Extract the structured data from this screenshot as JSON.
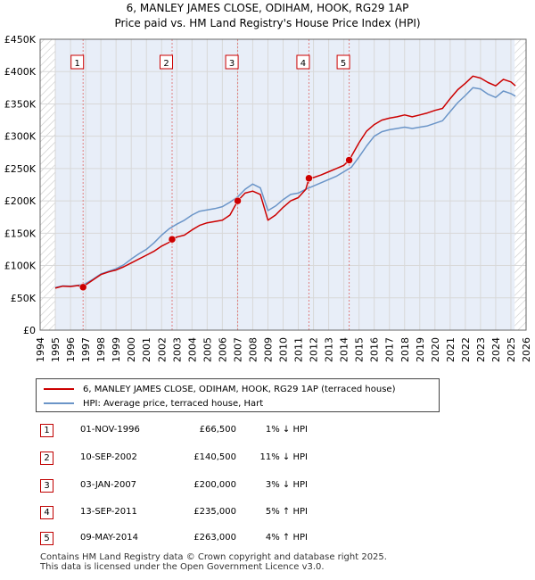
{
  "title_line1": "6, MANLEY JAMES CLOSE, ODIHAM, HOOK, RG29 1AP",
  "title_line2": "Price paid vs. HM Land Registry's House Price Index (HPI)",
  "colors": {
    "property": "#cc0000",
    "hpi": "#6b95c8",
    "shade": "#e8eef8",
    "grid": "#d8d8d8",
    "marker_dash": "#e08080"
  },
  "chart_data": {
    "type": "line",
    "title": "6, MANLEY JAMES CLOSE, ODIHAM, HOOK, RG29 1AP",
    "subtitle": "Price paid vs. HM Land Registry's House Price Index (HPI)",
    "xlabel": "",
    "ylabel": "",
    "xlim": [
      1994,
      2026
    ],
    "ylim": [
      0,
      450000
    ],
    "y_ticks": [
      0,
      50000,
      100000,
      150000,
      200000,
      250000,
      300000,
      350000,
      400000,
      450000
    ],
    "y_tick_labels": [
      "£0",
      "£50K",
      "£100K",
      "£150K",
      "£200K",
      "£250K",
      "£300K",
      "£350K",
      "£400K",
      "£450K"
    ],
    "x_ticks": [
      1994,
      1995,
      1996,
      1997,
      1998,
      1999,
      2000,
      2001,
      2002,
      2003,
      2004,
      2005,
      2006,
      2007,
      2008,
      2009,
      2010,
      2011,
      2012,
      2013,
      2014,
      2015,
      2016,
      2017,
      2018,
      2019,
      2020,
      2021,
      2022,
      2023,
      2024,
      2025,
      2026
    ],
    "shaded_regions": [
      [
        1995.0,
        2025.25
      ]
    ],
    "hatched_regions": [
      [
        1994.0,
        1995.0
      ],
      [
        2025.25,
        2026.0
      ]
    ],
    "grid": true,
    "series": [
      {
        "name": "6, MANLEY JAMES CLOSE, ODIHAM, HOOK, RG29 1AP (terraced house)",
        "color": "#cc0000",
        "points": [
          [
            1995.0,
            65000
          ],
          [
            1995.5,
            68000
          ],
          [
            1996.0,
            67500
          ],
          [
            1996.5,
            69000
          ],
          [
            1996.83,
            66500
          ],
          [
            1997.0,
            70000
          ],
          [
            1997.5,
            78000
          ],
          [
            1998.0,
            86000
          ],
          [
            1998.5,
            90000
          ],
          [
            1999.0,
            93000
          ],
          [
            1999.5,
            98000
          ],
          [
            2000.0,
            104000
          ],
          [
            2000.5,
            110000
          ],
          [
            2001.0,
            116000
          ],
          [
            2001.5,
            122000
          ],
          [
            2002.0,
            130000
          ],
          [
            2002.5,
            136000
          ],
          [
            2002.69,
            140500
          ],
          [
            2003.0,
            144000
          ],
          [
            2003.5,
            147000
          ],
          [
            2004.0,
            155000
          ],
          [
            2004.5,
            162000
          ],
          [
            2005.0,
            166000
          ],
          [
            2005.5,
            168000
          ],
          [
            2006.0,
            170000
          ],
          [
            2006.5,
            178000
          ],
          [
            2007.01,
            200000
          ],
          [
            2007.5,
            212000
          ],
          [
            2008.0,
            215000
          ],
          [
            2008.5,
            210000
          ],
          [
            2009.0,
            170000
          ],
          [
            2009.5,
            178000
          ],
          [
            2010.0,
            190000
          ],
          [
            2010.5,
            200000
          ],
          [
            2011.0,
            205000
          ],
          [
            2011.5,
            218000
          ],
          [
            2011.7,
            235000
          ],
          [
            2012.0,
            236000
          ],
          [
            2012.5,
            240000
          ],
          [
            2013.0,
            245000
          ],
          [
            2013.5,
            250000
          ],
          [
            2014.0,
            255000
          ],
          [
            2014.35,
            263000
          ],
          [
            2015.0,
            290000
          ],
          [
            2015.5,
            308000
          ],
          [
            2016.0,
            318000
          ],
          [
            2016.5,
            325000
          ],
          [
            2017.0,
            328000
          ],
          [
            2017.5,
            330000
          ],
          [
            2018.0,
            333000
          ],
          [
            2018.5,
            330000
          ],
          [
            2019.0,
            333000
          ],
          [
            2019.5,
            336000
          ],
          [
            2020.0,
            340000
          ],
          [
            2020.5,
            343000
          ],
          [
            2021.0,
            358000
          ],
          [
            2021.5,
            372000
          ],
          [
            2022.0,
            382000
          ],
          [
            2022.5,
            393000
          ],
          [
            2023.0,
            390000
          ],
          [
            2023.5,
            383000
          ],
          [
            2024.0,
            378000
          ],
          [
            2024.5,
            388000
          ],
          [
            2025.0,
            384000
          ],
          [
            2025.3,
            378000
          ]
        ]
      },
      {
        "name": "HPI: Average price, terraced house, Hart",
        "color": "#6b95c8",
        "points": [
          [
            1995.0,
            66000
          ],
          [
            1995.5,
            68500
          ],
          [
            1996.0,
            68000
          ],
          [
            1996.5,
            69500
          ],
          [
            1997.0,
            72000
          ],
          [
            1997.5,
            79000
          ],
          [
            1998.0,
            87000
          ],
          [
            1998.5,
            91000
          ],
          [
            1999.0,
            95000
          ],
          [
            1999.5,
            101000
          ],
          [
            2000.0,
            110000
          ],
          [
            2000.5,
            118000
          ],
          [
            2001.0,
            125000
          ],
          [
            2001.5,
            135000
          ],
          [
            2002.0,
            147000
          ],
          [
            2002.5,
            157000
          ],
          [
            2003.0,
            164000
          ],
          [
            2003.5,
            170000
          ],
          [
            2004.0,
            178000
          ],
          [
            2004.5,
            184000
          ],
          [
            2005.0,
            186000
          ],
          [
            2005.5,
            188000
          ],
          [
            2006.0,
            191000
          ],
          [
            2006.5,
            198000
          ],
          [
            2007.0,
            206000
          ],
          [
            2007.5,
            218000
          ],
          [
            2008.0,
            226000
          ],
          [
            2008.5,
            220000
          ],
          [
            2009.0,
            185000
          ],
          [
            2009.5,
            192000
          ],
          [
            2010.0,
            202000
          ],
          [
            2010.5,
            210000
          ],
          [
            2011.0,
            212000
          ],
          [
            2011.5,
            218000
          ],
          [
            2012.0,
            223000
          ],
          [
            2012.5,
            228000
          ],
          [
            2013.0,
            233000
          ],
          [
            2013.5,
            238000
          ],
          [
            2014.0,
            245000
          ],
          [
            2014.5,
            252000
          ],
          [
            2015.0,
            268000
          ],
          [
            2015.5,
            285000
          ],
          [
            2016.0,
            300000
          ],
          [
            2016.5,
            307000
          ],
          [
            2017.0,
            310000
          ],
          [
            2017.5,
            312000
          ],
          [
            2018.0,
            314000
          ],
          [
            2018.5,
            312000
          ],
          [
            2019.0,
            314000
          ],
          [
            2019.5,
            316000
          ],
          [
            2020.0,
            320000
          ],
          [
            2020.5,
            324000
          ],
          [
            2021.0,
            338000
          ],
          [
            2021.5,
            352000
          ],
          [
            2022.0,
            363000
          ],
          [
            2022.5,
            375000
          ],
          [
            2023.0,
            373000
          ],
          [
            2023.5,
            365000
          ],
          [
            2024.0,
            360000
          ],
          [
            2024.5,
            370000
          ],
          [
            2025.0,
            366000
          ],
          [
            2025.3,
            362000
          ]
        ]
      }
    ],
    "sales": [
      {
        "id": "1",
        "x": 1996.83,
        "price": 66500
      },
      {
        "id": "2",
        "x": 2002.69,
        "price": 140500
      },
      {
        "id": "3",
        "x": 2007.01,
        "price": 200000
      },
      {
        "id": "4",
        "x": 2011.7,
        "price": 235000
      },
      {
        "id": "5",
        "x": 2014.35,
        "price": 263000
      }
    ]
  },
  "legend": {
    "property_label": "6, MANLEY JAMES CLOSE, ODIHAM, HOOK, RG29 1AP (terraced house)",
    "hpi_label": "HPI: Average price, terraced house, Hart"
  },
  "sales_table": [
    {
      "num": "1",
      "date": "01-NOV-1996",
      "price": "£66,500",
      "pct": "1% ↓ HPI"
    },
    {
      "num": "2",
      "date": "10-SEP-2002",
      "price": "£140,500",
      "pct": "11% ↓ HPI"
    },
    {
      "num": "3",
      "date": "03-JAN-2007",
      "price": "£200,000",
      "pct": "3% ↓ HPI"
    },
    {
      "num": "4",
      "date": "13-SEP-2011",
      "price": "£235,000",
      "pct": "5% ↑ HPI"
    },
    {
      "num": "5",
      "date": "09-MAY-2014",
      "price": "£263,000",
      "pct": "4% ↑ HPI"
    }
  ],
  "footer_line1": "Contains HM Land Registry data © Crown copyright and database right 2025.",
  "footer_line2": "This data is licensed under the Open Government Licence v3.0."
}
